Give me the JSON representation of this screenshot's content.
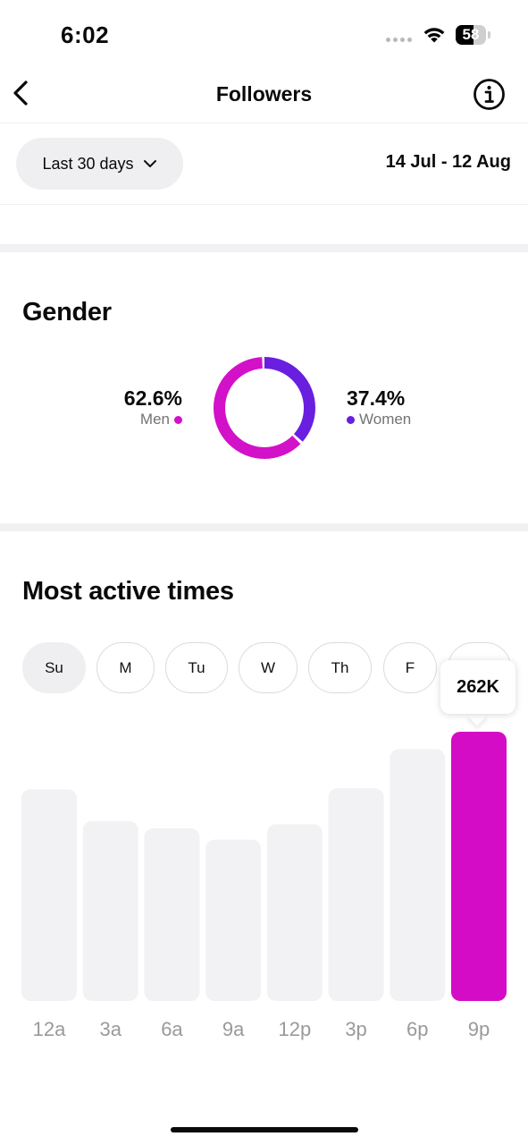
{
  "status_bar": {
    "time": "6:02",
    "battery": "58",
    "battery_level": 0.58
  },
  "nav": {
    "title": "Followers",
    "back_icon": "chevron-left-icon",
    "info_icon": "info-icon"
  },
  "filter": {
    "range_label": "Last 30 days",
    "date_range": "14 Jul - 12 Aug"
  },
  "gender": {
    "title": "Gender",
    "men": {
      "percent": "62.6%",
      "label": "Men",
      "value": 62.6,
      "color": "#d211c8"
    },
    "women": {
      "percent": "37.4%",
      "label": "Women",
      "value": 37.4,
      "color": "#6a1ee0"
    }
  },
  "active_times": {
    "title": "Most active times",
    "days": [
      "Su",
      "M",
      "Tu",
      "W",
      "Th",
      "F",
      "Sa"
    ],
    "selected_day": "Su",
    "tooltip": "262K"
  },
  "chart_data": {
    "type": "bar",
    "categories": [
      "12a",
      "3a",
      "6a",
      "9a",
      "12p",
      "3p",
      "6p",
      "9p"
    ],
    "values": [
      206,
      175,
      168,
      157,
      172,
      207,
      245,
      262
    ],
    "highlighted_index": 7,
    "highlight_color": "#d50cc5",
    "bar_color": "#f2f2f4",
    "label_color": "#9a9a9a",
    "ylim": [
      0,
      262
    ]
  }
}
